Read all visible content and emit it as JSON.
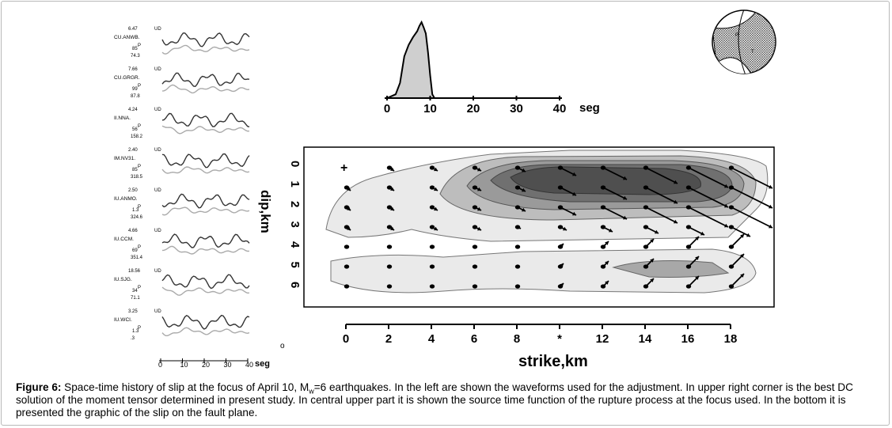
{
  "waveforms": {
    "stations": [
      {
        "amp": "6.47",
        "comp": "UD",
        "name": "CU.ANWB.",
        "az": "85",
        "phase": "P",
        "dist": "74.3"
      },
      {
        "amp": "7.66",
        "comp": "UD",
        "name": "CU.GRGR.",
        "az": "99",
        "phase": "P",
        "dist": "87.8"
      },
      {
        "amp": "4.24",
        "comp": "UD",
        "name": "II.NNA.",
        "az": "56",
        "phase": "P",
        "dist": "158.2"
      },
      {
        "amp": "2.40",
        "comp": "UD",
        "name": "IM.NV31.",
        "az": "85",
        "phase": "P",
        "dist": "318.5"
      },
      {
        "amp": "2.50",
        "comp": "UD",
        "name": "IU.ANMO.",
        "az": "1.3",
        "phase": "P",
        "dist": "324.6"
      },
      {
        "amp": "4.66",
        "comp": "UD",
        "name": "IU.CCM.",
        "az": "69",
        "phase": "P",
        "dist": "351.4"
      },
      {
        "amp": "18.56",
        "comp": "UD",
        "name": "IU.SJG.",
        "az": "34",
        "phase": "P",
        "dist": "71.1"
      },
      {
        "amp": "3.25",
        "comp": "UD",
        "name": "IU.WCI.",
        "az": "1.3",
        "phase": "P",
        "dist": ".3"
      }
    ],
    "axis": {
      "ticks": [
        "0",
        "10",
        "20",
        "30",
        "40"
      ],
      "unit": "seg"
    },
    "stray_mark": "o"
  },
  "stf": {
    "ticks": [
      "0",
      "10",
      "20",
      "30",
      "40"
    ],
    "unit": "seg",
    "x": [
      0,
      2,
      3,
      4,
      5,
      6,
      7,
      7.5,
      8,
      8.5,
      9,
      9.5,
      10,
      10.5,
      11
    ],
    "y": [
      0,
      0.05,
      0.2,
      0.55,
      0.7,
      0.8,
      0.88,
      0.95,
      1.0,
      0.93,
      0.85,
      0.6,
      0.3,
      0.05,
      0
    ]
  },
  "slip": {
    "dip_label": "dip,km",
    "dip_ticks": [
      "0",
      "1",
      "2",
      "3",
      "4",
      "5",
      "6"
    ],
    "strike_label": "strike,km",
    "strike_ticks": [
      "0",
      "2",
      "4",
      "6",
      "8",
      "*",
      "12",
      "14",
      "16",
      "18"
    ],
    "origin_marker": "+",
    "description_note": "slip vectors on fault plane"
  },
  "mechanism": {
    "label_p": "P",
    "label_t": "T"
  },
  "caption": {
    "label": "Figure 6:",
    "text_a": " Space-time history of slip at the focus of April 10, M",
    "sub": "w",
    "text_b": "=6 earthquakes. In the left are shown the waveforms used for the adjustment. In upper right corner is the best DC solution of the moment tensor determined in present study. In central upper part it is shown the source time function of the rupture process at the focus used. In the bottom it is presented the graphic of the slip on the fault plane."
  }
}
